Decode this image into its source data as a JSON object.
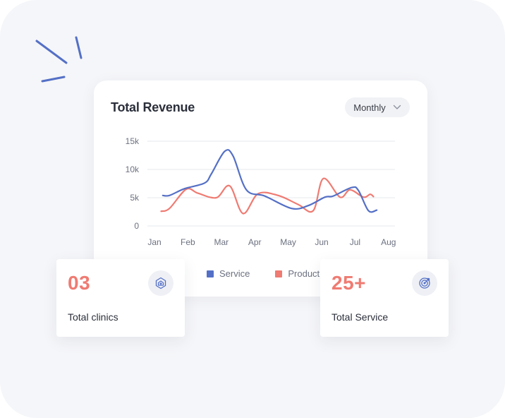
{
  "revenue_card": {
    "title": "Total Revenue",
    "period_selector": {
      "value": "Monthly",
      "icon": "chevron-down-icon"
    }
  },
  "chart_data": {
    "type": "line",
    "title": "Total Revenue",
    "xlabel": "",
    "ylabel": "",
    "categories": [
      "Jan",
      "Feb",
      "Mar",
      "Apr",
      "May",
      "Jun",
      "Jul",
      "Aug"
    ],
    "y_ticks": [
      "15k",
      "10k",
      "5k",
      "0"
    ],
    "ylim": [
      0,
      15000
    ],
    "grid": true,
    "legend_position": "bottom",
    "smooth": true,
    "series": [
      {
        "name": "Service",
        "color": "#5470c6",
        "points": [
          [
            0.25,
            5400
          ],
          [
            0.45,
            5400
          ],
          [
            0.9,
            6600
          ],
          [
            1.5,
            7600
          ],
          [
            1.7,
            9200
          ],
          [
            2.1,
            13200
          ],
          [
            2.35,
            12400
          ],
          [
            2.75,
            6400
          ],
          [
            3.3,
            5300
          ],
          [
            4.1,
            3100
          ],
          [
            4.6,
            3600
          ],
          [
            5.1,
            5100
          ],
          [
            5.35,
            5300
          ],
          [
            5.9,
            6800
          ],
          [
            6.1,
            6300
          ],
          [
            6.4,
            2700
          ],
          [
            6.65,
            2800
          ]
        ],
        "values": [
          5400,
          6600,
          13200,
          5800,
          3200,
          5200,
          6800,
          2800
        ]
      },
      {
        "name": "Product",
        "color": "#ef7b72",
        "points": [
          [
            0.2,
            2600
          ],
          [
            0.45,
            3100
          ],
          [
            0.95,
            6500
          ],
          [
            1.3,
            5800
          ],
          [
            1.85,
            5000
          ],
          [
            2.25,
            7100
          ],
          [
            2.65,
            2200
          ],
          [
            3.1,
            5700
          ],
          [
            3.7,
            5400
          ],
          [
            4.3,
            3800
          ],
          [
            4.75,
            2700
          ],
          [
            5.05,
            8400
          ],
          [
            5.55,
            5100
          ],
          [
            5.85,
            6400
          ],
          [
            6.25,
            5100
          ],
          [
            6.45,
            5600
          ],
          [
            6.55,
            5200
          ]
        ],
        "values": [
          2600,
          6500,
          7100,
          5700,
          3800,
          8400,
          6400,
          5200
        ]
      }
    ]
  },
  "stats": [
    {
      "value": "03",
      "label": "Total clinics",
      "icon": "clinic-badge-icon"
    },
    {
      "value": "25+",
      "label": "Total Service",
      "icon": "target-icon"
    }
  ],
  "colors": {
    "accent": "#ef7b72",
    "service": "#5470c6",
    "product": "#ef7b72",
    "background": "#f5f6f9"
  }
}
